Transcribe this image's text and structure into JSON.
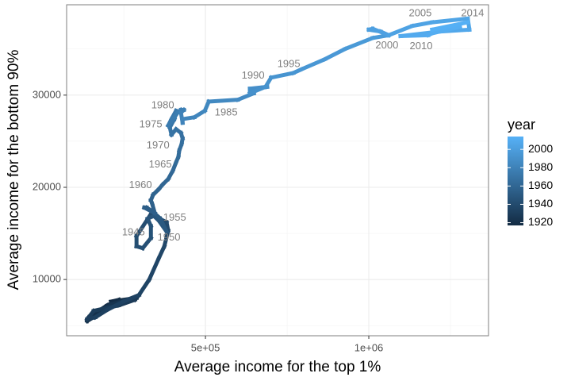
{
  "chart_data": {
    "type": "path",
    "x_label": "Average income for the top 1%",
    "y_label": "Average income for the bottom 90%",
    "xlim": [
      75000,
      1366500
    ],
    "ylim": [
      3900,
      39800
    ],
    "xticks": [
      {
        "value": 500000,
        "label": "5e+05"
      },
      {
        "value": 1000000,
        "label": "1e+06"
      }
    ],
    "yticks": [
      10000,
      20000,
      30000
    ],
    "xminor": [
      250000,
      750000,
      1250000
    ],
    "yminor": [
      5000,
      15000,
      25000,
      35000
    ],
    "grid": true,
    "years": [
      1917,
      1918,
      1919,
      1920,
      1921,
      1922,
      1923,
      1924,
      1925,
      1926,
      1927,
      1928,
      1929,
      1930,
      1931,
      1932,
      1933,
      1934,
      1935,
      1936,
      1937,
      1938,
      1939,
      1940,
      1941,
      1942,
      1943,
      1944,
      1945,
      1946,
      1947,
      1948,
      1949,
      1950,
      1951,
      1952,
      1953,
      1954,
      1955,
      1956,
      1957,
      1958,
      1959,
      1960,
      1961,
      1962,
      1963,
      1964,
      1965,
      1966,
      1967,
      1968,
      1969,
      1970,
      1971,
      1972,
      1973,
      1974,
      1975,
      1976,
      1977,
      1978,
      1979,
      1980,
      1981,
      1982,
      1983,
      1984,
      1985,
      1986,
      1987,
      1988,
      1989,
      1990,
      1991,
      1992,
      1993,
      1994,
      1995,
      1996,
      1997,
      1998,
      1999,
      2000,
      2001,
      2002,
      2003,
      2004,
      2005,
      2006,
      2007,
      2008,
      2009,
      2010,
      2011,
      2012,
      2013,
      2014
    ],
    "x": [
      289000,
      211000,
      235000,
      199000,
      143000,
      138000,
      175000,
      211000,
      260000,
      289000,
      296000,
      284000,
      235000,
      158000,
      138000,
      163000,
      199000,
      248000,
      296000,
      328000,
      357000,
      374000,
      386000,
      381000,
      333000,
      289000,
      289000,
      308000,
      333000,
      333000,
      323000,
      342000,
      357000,
      381000,
      362000,
      337000,
      320000,
      313000,
      345000,
      337000,
      333000,
      340000,
      357000,
      369000,
      386000,
      400000,
      410000,
      417000,
      420000,
      427000,
      430000,
      425000,
      410000,
      396000,
      391000,
      405000,
      410000,
      396000,
      386000,
      405000,
      415000,
      425000,
      434000,
      425000,
      430000,
      430000,
      466000,
      498000,
      510000,
      599000,
      648000,
      648000,
      689000,
      636000,
      636000,
      684000,
      701000,
      769000,
      794000,
      866000,
      927000,
      1012000,
      1061000,
      1036000,
      1000000,
      1012000,
      1061000,
      1133000,
      1194000,
      1303000,
      1308000,
      1218000,
      1097000,
      1182000,
      1194000,
      1279000,
      1194000,
      1303000
    ],
    "values": [
      8000,
      7600,
      7800,
      7200,
      5900,
      5500,
      6300,
      7300,
      7800,
      8200,
      8300,
      7800,
      7200,
      6600,
      5700,
      5900,
      6700,
      7600,
      8300,
      10000,
      12300,
      13600,
      15300,
      16200,
      17100,
      14700,
      13600,
      13400,
      14500,
      15800,
      16600,
      16900,
      16400,
      15200,
      16600,
      17400,
      17800,
      17800,
      17200,
      18200,
      18600,
      19200,
      19800,
      20300,
      20900,
      21800,
      22700,
      23300,
      24000,
      24700,
      25300,
      25900,
      26300,
      25700,
      26500,
      27400,
      28300,
      27400,
      26700,
      27600,
      28100,
      28400,
      28400,
      28100,
      27000,
      27400,
      27600,
      28300,
      29300,
      29500,
      30200,
      30700,
      30900,
      30700,
      30200,
      30900,
      31900,
      32400,
      32800,
      33900,
      35000,
      36200,
      36500,
      36900,
      37100,
      37200,
      36500,
      37500,
      37900,
      38300,
      37100,
      36900,
      36400,
      36500,
      36700,
      37400,
      37100,
      37900
    ],
    "point_labels": [
      null,
      null,
      null,
      null,
      null,
      null,
      null,
      null,
      null,
      null,
      null,
      null,
      null,
      null,
      null,
      null,
      null,
      null,
      null,
      null,
      null,
      null,
      null,
      null,
      null,
      null,
      null,
      null,
      "1945",
      null,
      null,
      null,
      null,
      "1950",
      null,
      null,
      null,
      null,
      "1955",
      null,
      null,
      null,
      null,
      "1960",
      null,
      null,
      null,
      null,
      "1965",
      null,
      null,
      null,
      null,
      "1970",
      null,
      null,
      null,
      null,
      "1975",
      null,
      null,
      null,
      null,
      "1980",
      null,
      null,
      null,
      null,
      "1985",
      null,
      null,
      null,
      null,
      "1990",
      null,
      null,
      null,
      null,
      "1995",
      null,
      null,
      null,
      null,
      "2000",
      null,
      null,
      null,
      null,
      "2005",
      null,
      null,
      null,
      null,
      "2010",
      null,
      null,
      null,
      "2014"
    ],
    "color_scale": {
      "title": "year",
      "lim": [
        1917,
        2014
      ],
      "ticks": [
        1920,
        1940,
        1960,
        1980,
        2000
      ],
      "low": "#132B43",
      "high": "#56B1F7"
    }
  }
}
